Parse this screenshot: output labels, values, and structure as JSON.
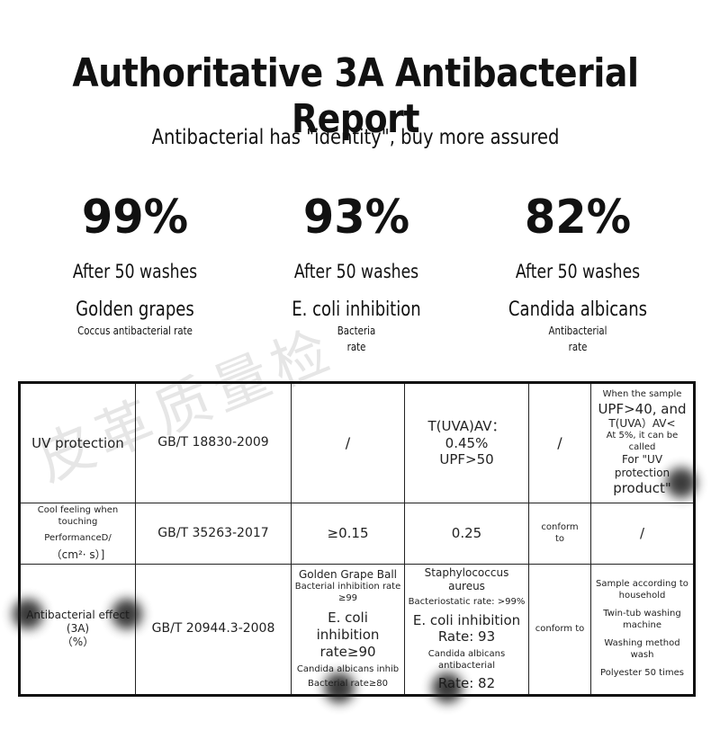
{
  "header": {
    "title": "Authoritative 3A Antibacterial Report",
    "subtitle": "Antibacterial has \"identity\", buy more assured"
  },
  "stats": [
    {
      "percent": "99%",
      "washes": "After 50 washes",
      "name": "Golden grapes",
      "desc_lines": [
        "Coccus antibacterial rate"
      ]
    },
    {
      "percent": "93%",
      "washes": "After 50 washes",
      "name": "E. coli inhibition",
      "desc_lines": [
        "Bacteria",
        "rate"
      ]
    },
    {
      "percent": "82%",
      "washes": "After 50 washes",
      "name": "Candida albicans",
      "desc_lines": [
        "Antibacterial",
        "rate"
      ]
    }
  ],
  "table": {
    "rows": [
      {
        "item": [
          "UV protection"
        ],
        "standard": "GB/T 18830-2009",
        "requirement": [
          "/"
        ],
        "result": [
          "T(UVA)AV：0.45%",
          "UPF>50"
        ],
        "judgement": [
          "/"
        ],
        "note": [
          "When the sample",
          "UPF>40, and",
          "T(UVA）AV<",
          "At 5%, it can be called",
          "For \"UV protection",
          "product\""
        ]
      },
      {
        "item": [
          "Cool feeling when touching",
          "PerformanceD/",
          "（cm²· s）]"
        ],
        "standard": "GB/T 35263-2017",
        "requirement": [
          "≥0.15"
        ],
        "result": [
          "0.25"
        ],
        "judgement": [
          "conform",
          "to"
        ],
        "note": [
          "/"
        ]
      },
      {
        "item": [
          "Antibacterial effect (3A)",
          "（%）"
        ],
        "standard": "GB/T 20944.3-2008",
        "requirement": [
          "Golden Grape Ball",
          "Bacterial inhibition rate ≥99",
          "E. coli inhibition",
          "rate≥90",
          "Candida albicans inhib",
          "Bacterial rate≥80"
        ],
        "result": [
          "Staphylococcus aureus",
          "Bacteriostatic rate: >99%",
          "E. coli inhibition",
          "Rate: 93",
          "Candida albicans antibacterial",
          "Rate: 82"
        ],
        "judgement": [
          "conform to"
        ],
        "note": [
          "Sample according to household",
          "Twin-tub washing machine",
          "Washing method wash",
          "Polyester 50 times"
        ]
      }
    ]
  }
}
